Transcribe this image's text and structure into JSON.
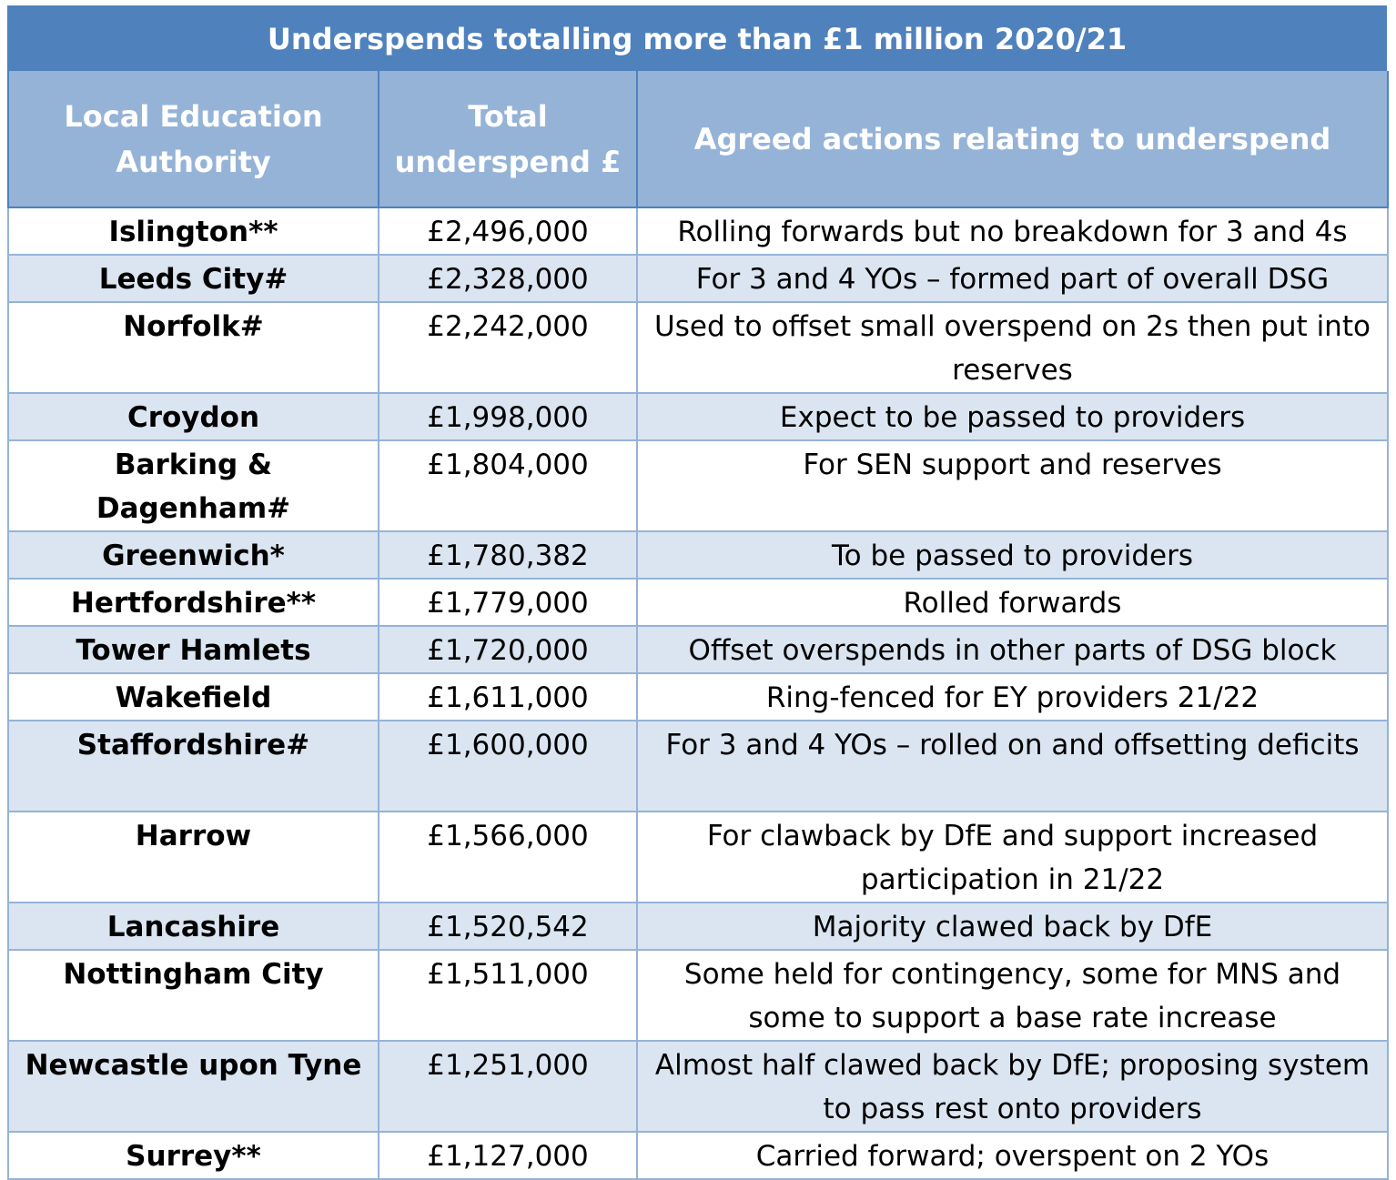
{
  "title": "Underspends totalling more than £1 million 2020/21",
  "headers": {
    "authority": "Local Education Authority",
    "underspend": "Total underspend £",
    "actions": "Agreed actions relating to underspend"
  },
  "rows": [
    {
      "authority": "Islington**",
      "underspend": "£2,496,000",
      "action": "Rolling forwards but no breakdown for 3 and 4s"
    },
    {
      "authority": "Leeds City#",
      "underspend": "£2,328,000",
      "action": "For 3 and 4 YOs – formed part of overall DSG"
    },
    {
      "authority": "Norfolk#",
      "underspend": "£2,242,000",
      "action": "Used to offset small overspend on 2s then put into reserves"
    },
    {
      "authority": "Croydon",
      "underspend": "£1,998,000",
      "action": "Expect to be passed to providers"
    },
    {
      "authority": "Barking & Dagenham#",
      "underspend": "£1,804,000",
      "action": "For SEN support and reserves"
    },
    {
      "authority": "Greenwich*",
      "underspend": "£1,780,382",
      "action": "To be passed to providers"
    },
    {
      "authority": "Hertfordshire**",
      "underspend": "£1,779,000",
      "action": "Rolled forwards"
    },
    {
      "authority": "Tower Hamlets",
      "underspend": "£1,720,000",
      "action": "Offset overspends in other parts of DSG block"
    },
    {
      "authority": "Wakefield",
      "underspend": "£1,611,000",
      "action": "Ring-fenced for EY providers 21/22"
    },
    {
      "authority": "Staffordshire#",
      "underspend": "£1,600,000",
      "action": "For 3 and 4 YOs – rolled on and offsetting deficits"
    },
    {
      "authority": "Harrow",
      "underspend": "£1,566,000",
      "action": "For clawback by DfE and support increased participation in 21/22"
    },
    {
      "authority": "Lancashire",
      "underspend": "£1,520,542",
      "action": "Majority clawed back by DfE"
    },
    {
      "authority": "Nottingham City",
      "underspend": "£1,511,000",
      "action": "Some held for contingency, some for MNS and some to support a base rate increase"
    },
    {
      "authority": "Newcastle upon Tyne",
      "underspend": "£1,251,000",
      "action": "Almost half clawed back by DfE; proposing system to pass rest onto providers"
    },
    {
      "authority": "Surrey**",
      "underspend": "£1,127,000",
      "action": "Carried forward; overspent on 2 YOs"
    }
  ]
}
